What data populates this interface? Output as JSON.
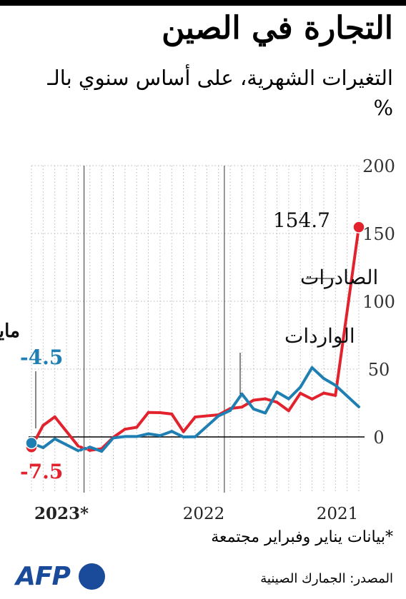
{
  "title": "التجارة في الصين",
  "subtitle": "التغيرات الشهرية، على أساس سنوي بالـ %",
  "footnote": "*بيانات يناير وفبراير مجتمعة",
  "source": "المصدر: الجمارك الصينية",
  "logo": "AFP",
  "colors": {
    "exports": "#e2232e",
    "imports": "#1f7fb3",
    "axis": "#000000",
    "grid": "#b8b8b8"
  },
  "chart_data": {
    "type": "line",
    "x_direction": "right-to-left",
    "x_start": "2021-01",
    "x_end": "2023-05",
    "year_labels": [
      {
        "label": "2021",
        "date": "2021-01"
      },
      {
        "label": "2022",
        "date": "2022-01"
      },
      {
        "label": "2023*",
        "date": "2023-01"
      }
    ],
    "y_ticks": [
      0,
      50,
      100,
      150,
      200
    ],
    "ylim": [
      -10,
      200
    ],
    "grid": true,
    "series": [
      {
        "key": "exports",
        "name": "الصادرات",
        "points": [
          [
            "2021-01",
            154.7
          ],
          [
            "2021-03",
            30.6
          ],
          [
            "2021-04",
            32.3
          ],
          [
            "2021-05",
            27.9
          ],
          [
            "2021-06",
            32.2
          ],
          [
            "2021-07",
            19.3
          ],
          [
            "2021-08",
            25.6
          ],
          [
            "2021-09",
            28.1
          ],
          [
            "2021-10",
            27.1
          ],
          [
            "2021-11",
            22.0
          ],
          [
            "2021-12",
            20.9
          ],
          [
            "2022-01",
            16.3
          ],
          [
            "2022-03",
            14.7
          ],
          [
            "2022-04",
            3.9
          ],
          [
            "2022-05",
            16.9
          ],
          [
            "2022-06",
            17.9
          ],
          [
            "2022-07",
            18.0
          ],
          [
            "2022-08",
            7.1
          ],
          [
            "2022-09",
            5.7
          ],
          [
            "2022-10",
            -0.3
          ],
          [
            "2022-11",
            -8.7
          ],
          [
            "2022-12",
            -9.9
          ],
          [
            "2023-01",
            -6.8
          ],
          [
            "2023-03",
            14.8
          ],
          [
            "2023-04",
            8.5
          ],
          [
            "2023-05",
            -7.5
          ]
        ],
        "callouts": [
          {
            "date": "2021-01",
            "value": 154.7,
            "label": "154.7"
          },
          {
            "date": "2023-05",
            "value": -7.5,
            "label": "-7.5"
          }
        ]
      },
      {
        "key": "imports",
        "name": "الواردات",
        "points": [
          [
            "2021-01",
            22.2
          ],
          [
            "2021-03",
            38.1
          ],
          [
            "2021-04",
            43.1
          ],
          [
            "2021-05",
            51.1
          ],
          [
            "2021-06",
            36.7
          ],
          [
            "2021-07",
            28.1
          ],
          [
            "2021-08",
            33.1
          ],
          [
            "2021-09",
            17.6
          ],
          [
            "2021-10",
            20.6
          ],
          [
            "2021-11",
            31.7
          ],
          [
            "2021-12",
            19.5
          ],
          [
            "2022-01",
            15.5
          ],
          [
            "2022-03",
            0.1
          ],
          [
            "2022-04",
            0.0
          ],
          [
            "2022-05",
            4.1
          ],
          [
            "2022-06",
            1.0
          ],
          [
            "2022-07",
            2.3
          ],
          [
            "2022-08",
            0.3
          ],
          [
            "2022-09",
            0.3
          ],
          [
            "2022-10",
            -0.7
          ],
          [
            "2022-11",
            -10.6
          ],
          [
            "2022-12",
            -7.5
          ],
          [
            "2023-01",
            -10.2
          ],
          [
            "2023-03",
            -1.4
          ],
          [
            "2023-04",
            -7.9
          ],
          [
            "2023-05",
            -4.5
          ]
        ],
        "callouts": [
          {
            "date": "2023-05",
            "value": -4.5,
            "label": "-4.5"
          }
        ]
      }
    ],
    "annotations": {
      "month_label": "مايو",
      "exports_label": "الصادرات",
      "imports_label": "الواردات"
    }
  }
}
